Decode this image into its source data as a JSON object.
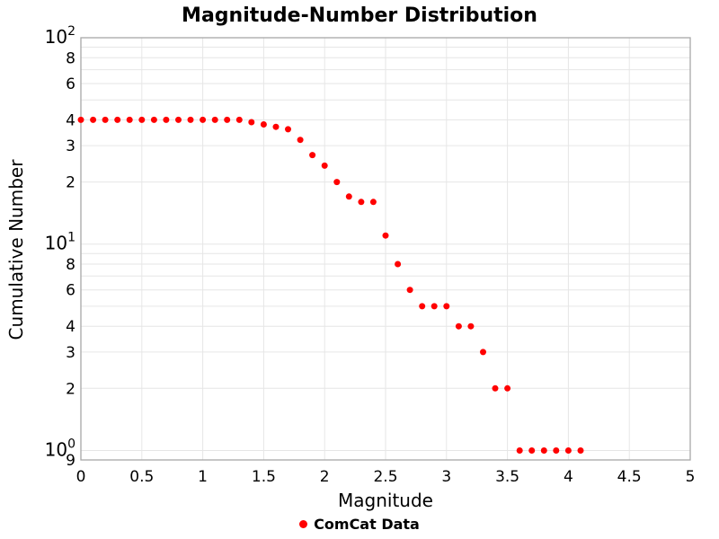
{
  "chart_data": {
    "type": "scatter",
    "title": "Magnitude-Number Distribution",
    "xlabel": "Magnitude",
    "ylabel": "Cumulative Number",
    "x_scale": "linear",
    "y_scale": "log",
    "xlim": [
      0,
      5
    ],
    "ylim": [
      0.9,
      100
    ],
    "grid": true,
    "xgrid": [
      0.5,
      1,
      1.5,
      2,
      2.5,
      3,
      3.5,
      4,
      4.5
    ],
    "ygrid": [
      90,
      80,
      70,
      60,
      50,
      40,
      30,
      20,
      10,
      9,
      8,
      7,
      6,
      5,
      4,
      3,
      2,
      1
    ],
    "xticks": [
      {
        "v": 0,
        "label": "0"
      },
      {
        "v": 0.5,
        "label": "0.5"
      },
      {
        "v": 1,
        "label": "1"
      },
      {
        "v": 1.5,
        "label": "1.5"
      },
      {
        "v": 2,
        "label": "2"
      },
      {
        "v": 2.5,
        "label": "2.5"
      },
      {
        "v": 3,
        "label": "3"
      },
      {
        "v": 3.5,
        "label": "3.5"
      },
      {
        "v": 4,
        "label": "4"
      },
      {
        "v": 4.5,
        "label": "4.5"
      },
      {
        "v": 5,
        "label": "5"
      }
    ],
    "yticks": [
      {
        "v": 100,
        "label": "10^2"
      },
      {
        "v": 80,
        "label": "8"
      },
      {
        "v": 60,
        "label": "6"
      },
      {
        "v": 40,
        "label": "4"
      },
      {
        "v": 30,
        "label": "3"
      },
      {
        "v": 20,
        "label": "2"
      },
      {
        "v": 10,
        "label": "10^1"
      },
      {
        "v": 8,
        "label": "8"
      },
      {
        "v": 6,
        "label": "6"
      },
      {
        "v": 4,
        "label": "4"
      },
      {
        "v": 3,
        "label": "3"
      },
      {
        "v": 2,
        "label": "2"
      },
      {
        "v": 1,
        "label": "10^0"
      },
      {
        "v": 0.9,
        "label": "9"
      }
    ],
    "legend_position": "bottom-center",
    "series": [
      {
        "name": "ComCat Data",
        "color": "#ff0000",
        "marker": "circle",
        "x": [
          0.0,
          0.1,
          0.2,
          0.3,
          0.4,
          0.5,
          0.6,
          0.7,
          0.8,
          0.9,
          1.0,
          1.1,
          1.2,
          1.3,
          1.4,
          1.5,
          1.6,
          1.7,
          1.8,
          1.9,
          2.0,
          2.1,
          2.2,
          2.3,
          2.4,
          2.5,
          2.6,
          2.7,
          2.8,
          2.9,
          3.0,
          3.1,
          3.2,
          3.3,
          3.4,
          3.5,
          3.6,
          3.7,
          3.8,
          3.9,
          4.0,
          4.1
        ],
        "y": [
          40,
          40,
          40,
          40,
          40,
          40,
          40,
          40,
          40,
          40,
          40,
          40,
          40,
          40,
          39,
          38,
          37,
          36,
          32,
          27,
          24,
          20,
          17,
          16,
          16,
          11,
          8,
          6,
          5,
          5,
          5,
          4,
          4,
          3,
          2,
          2,
          1,
          1,
          1,
          1,
          1,
          1
        ]
      }
    ]
  }
}
